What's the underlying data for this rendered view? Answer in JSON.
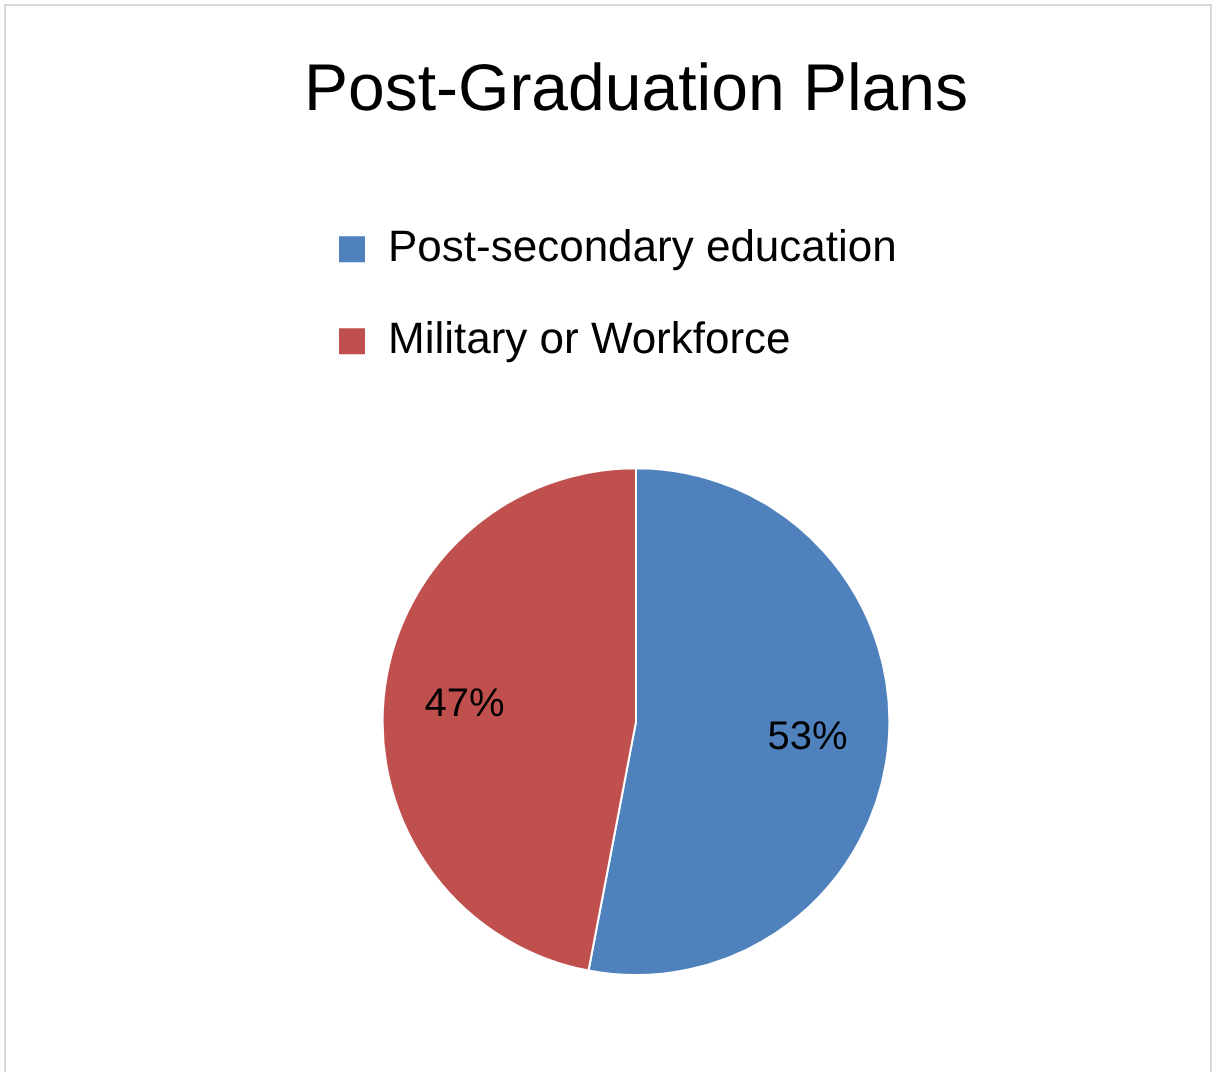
{
  "chart_data": {
    "type": "pie",
    "title": "Post-Graduation Plans",
    "categories": [
      "Post-secondary education",
      "Military or Workforce"
    ],
    "values": [
      53,
      47
    ],
    "colors": [
      "#4f81bd",
      "#c0504d"
    ],
    "value_labels": [
      "53%",
      "47%"
    ],
    "legend": "top"
  }
}
